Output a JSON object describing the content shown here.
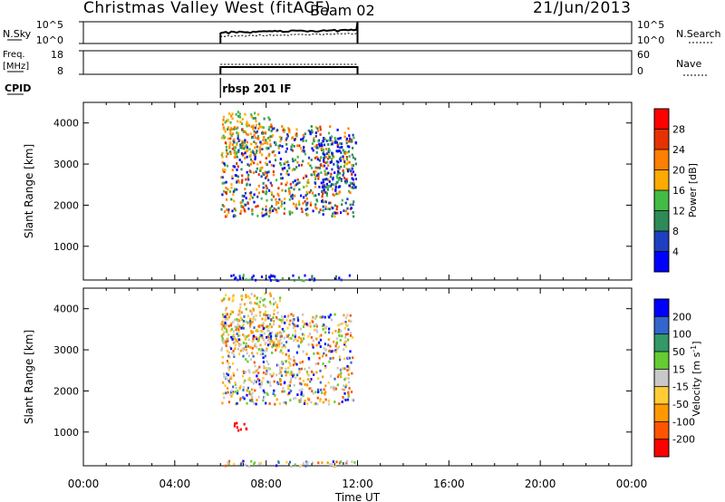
{
  "header": {
    "station": "Christmas Valley West (fitACF)",
    "beam": "Beam 02",
    "date": "21/Jun/2013"
  },
  "chart_data": [
    {
      "type": "line",
      "panel": "noise",
      "left_label": "N.Sky",
      "right_label": "N.Search",
      "left_ticks": [
        "10^5",
        "10^0"
      ],
      "right_ticks": [
        "10^5",
        "10^0"
      ],
      "x_range_hours": [
        0,
        24
      ],
      "data_range_hours": [
        6,
        12
      ]
    },
    {
      "type": "line",
      "panel": "frequency",
      "left_label_lines": [
        "Freq.",
        "[MHz]"
      ],
      "right_label": "Nave",
      "left_ticks": [
        "18",
        "8"
      ],
      "right_ticks": [
        "60",
        "0"
      ],
      "x_range_hours": [
        0,
        24
      ],
      "data_range_hours": [
        6,
        12
      ]
    },
    {
      "type": "table",
      "panel": "cpid",
      "label": "CPID",
      "segments": [
        {
          "start_hour": 6,
          "end_hour": 12,
          "name": "rbsp 201 IF"
        }
      ]
    },
    {
      "type": "heatmap",
      "panel": "power",
      "ylabel": "Slant Range [km]",
      "yticks": [
        "1000",
        "2000",
        "3000",
        "4000"
      ],
      "ylim": [
        180,
        4500
      ],
      "x_range_hours": [
        0,
        24
      ],
      "colorbar_label": "Power [dB]",
      "colorbar_ticks": [
        "4",
        "8",
        "12",
        "16",
        "20",
        "24",
        "28"
      ],
      "colorbar_colors": [
        "#0000ff",
        "#1e3fbf",
        "#2e8b57",
        "#44bb44",
        "#ffaa00",
        "#ff7f00",
        "#e63200",
        "#ff0000"
      ],
      "bands": [
        {
          "t0": 6.0,
          "t1": 8.2,
          "r0": 3200,
          "r1": 4300,
          "palette": "high"
        },
        {
          "t0": 6.0,
          "t1": 11.8,
          "r0": 1750,
          "r1": 3950,
          "palette": "mid"
        },
        {
          "t0": 10.2,
          "t1": 11.9,
          "r0": 2400,
          "r1": 3700,
          "palette": "low"
        },
        {
          "t0": 6.0,
          "t1": 11.9,
          "r0": 190,
          "r1": 330,
          "palette": "low"
        }
      ]
    },
    {
      "type": "heatmap",
      "panel": "velocity",
      "ylabel": "Slant Range [km]",
      "yticks": [
        "1000",
        "2000",
        "3000",
        "4000"
      ],
      "ylim": [
        180,
        4500
      ],
      "x_range_hours": [
        0,
        24
      ],
      "xticks": [
        "00:00",
        "04:00",
        "08:00",
        "12:00",
        "16:00",
        "20:00",
        "00:00"
      ],
      "xlabel": "Time UT",
      "colorbar_label_parts": [
        "Velocity [m s",
        "-1",
        "]"
      ],
      "colorbar_ticks": [
        "-200",
        "-100",
        "-50",
        "-15",
        "15",
        "50",
        "100",
        "200"
      ],
      "colorbar_colors": [
        "#ff0000",
        "#ff5500",
        "#ff9900",
        "#ffcc33",
        "#c8c8c8",
        "#66cc33",
        "#339966",
        "#3366cc",
        "#0000ff"
      ],
      "bands": [
        {
          "t0": 6.0,
          "t1": 8.6,
          "r0": 3000,
          "r1": 4400,
          "palette": "neg"
        },
        {
          "t0": 6.0,
          "t1": 11.8,
          "r0": 1700,
          "r1": 3900,
          "palette": "zero"
        },
        {
          "t0": 6.5,
          "t1": 7.3,
          "r0": 1050,
          "r1": 1250,
          "palette": "red"
        },
        {
          "t0": 6.0,
          "t1": 11.9,
          "r0": 190,
          "r1": 330,
          "palette": "zero"
        }
      ]
    }
  ]
}
